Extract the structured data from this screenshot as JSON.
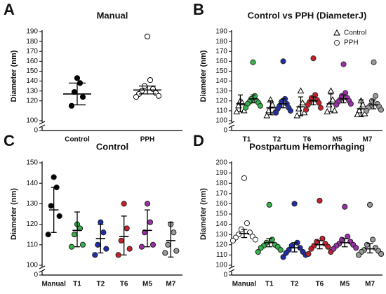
{
  "chart_data": [
    {
      "type": "dotplot",
      "panel": "A",
      "title": "Manual",
      "ylabel": "Diameter (nm)",
      "categories": [
        "Control",
        "PPH"
      ],
      "ylim": [
        100,
        190
      ],
      "yticks": [
        100,
        120,
        130,
        140,
        150,
        160,
        170,
        180,
        190
      ],
      "lower_yticks": [
        0
      ],
      "series": [
        {
          "marker": "circle",
          "stroke": "#000000",
          "fill": [
            "#000000",
            "#ffffff"
          ],
          "points": [
            [
              143,
              138,
              129,
              124,
              115
            ],
            [
              185,
              141,
              135,
              132,
              130,
              128,
              127,
              125,
              124
            ]
          ],
          "mean": [
            127,
            131
          ],
          "err_low": [
            116,
            127
          ],
          "err_high": [
            138,
            135
          ]
        }
      ]
    },
    {
      "type": "dotplot",
      "panel": "B",
      "title": "Control vs PPH (DiameterJ)",
      "ylabel": "Diameter (nm)",
      "categories": [
        "T1",
        "T2",
        "T6",
        "M5",
        "M7"
      ],
      "ylim": [
        100,
        190
      ],
      "yticks": [
        100,
        110,
        120,
        130,
        140,
        150,
        160,
        170,
        180,
        190
      ],
      "lower_yticks": [
        0
      ],
      "legend": "upper right",
      "series": [
        {
          "name": "Control",
          "marker": "triangle",
          "stroke": "#000000",
          "fill": [
            "#ffffff",
            "#ffffff",
            "#ffffff",
            "#ffffff",
            "#ffffff"
          ],
          "points": [
            [
              120,
              118,
              115,
              110,
              109
            ],
            [
              121,
              116,
              110,
              108,
              105
            ],
            [
              130,
              118,
              112,
              108,
              105
            ],
            [
              130,
              121,
              116,
              110,
              109
            ],
            [
              120,
              116,
              110,
              107,
              106
            ]
          ],
          "mean": [
            117,
            113,
            114,
            117,
            112
          ],
          "err_low": [
            109,
            106,
            105,
            109,
            104
          ],
          "err_high": [
            126,
            120,
            124,
            127,
            121
          ]
        },
        {
          "name": "PPH",
          "marker": "circle",
          "stroke": "#333333",
          "fill": [
            "#33b44a",
            "#1f2fa8",
            "#c8202a",
            "#9b2fa8",
            "#9a9a9a"
          ],
          "points": [
            [
              159,
              125,
              122,
              120,
              119,
              118,
              117,
              115,
              113
            ],
            [
              160,
              122,
              119,
              117,
              115,
              113,
              112,
              110,
              108
            ],
            [
              163,
              126,
              123,
              121,
              119,
              118,
              116,
              113,
              111
            ],
            [
              157,
              128,
              125,
              123,
              121,
              120,
              119,
              117,
              116
            ],
            [
              159,
              125,
              120,
              117,
              115,
              114,
              113,
              111,
              110
            ]
          ],
          "mean": [
            122,
            117,
            120,
            122,
            116
          ],
          "err_low": [
            118,
            113,
            116,
            118,
            112
          ],
          "err_high": [
            126,
            122,
            124,
            126,
            121
          ]
        }
      ]
    },
    {
      "type": "dotplot",
      "panel": "C",
      "title": "Control",
      "ylabel": "Diameter (nm)",
      "categories": [
        "Manual",
        "T1",
        "T2",
        "T6",
        "M5",
        "M7"
      ],
      "ylim": [
        100,
        150
      ],
      "yticks": [
        100,
        110,
        120,
        130,
        140,
        150
      ],
      "lower_yticks": [
        0
      ],
      "series": [
        {
          "marker": "circle",
          "stroke": "#222222",
          "fill": [
            "#000000",
            "#33b44a",
            "#1f2fa8",
            "#c8202a",
            "#9b2fa8",
            "#9a9a9a"
          ],
          "points": [
            [
              143,
              138,
              129,
              124,
              115
            ],
            [
              120,
              118,
              115,
              110,
              109
            ],
            [
              121,
              116,
              110,
              108,
              105
            ],
            [
              130,
              118,
              112,
              108,
              105
            ],
            [
              130,
              121,
              116,
              110,
              109
            ],
            [
              120,
              116,
              110,
              107,
              106
            ]
          ],
          "mean": [
            127,
            117,
            113,
            114,
            117,
            112
          ],
          "err_low": [
            116,
            109,
            106,
            105,
            109,
            104
          ],
          "err_high": [
            138,
            126,
            120,
            124,
            127,
            121
          ]
        }
      ]
    },
    {
      "type": "dotplot",
      "panel": "D",
      "title": "Postpartum Hemorrhaging",
      "ylabel": "Diameter (nm)",
      "categories": [
        "Manual",
        "T1",
        "T2",
        "T6",
        "M5",
        "M7"
      ],
      "ylim": [
        100,
        200
      ],
      "yticks": [
        100,
        110,
        120,
        130,
        140,
        150,
        160,
        170,
        180,
        190,
        200
      ],
      "lower_yticks": [
        0
      ],
      "series": [
        {
          "marker": "circle",
          "stroke": "#222222",
          "fill": [
            "#ffffff",
            "#33b44a",
            "#1f2fa8",
            "#c8202a",
            "#9b2fa8",
            "#9a9a9a"
          ],
          "points": [
            [
              185,
              141,
              135,
              132,
              130,
              128,
              127,
              125,
              124
            ],
            [
              159,
              125,
              122,
              120,
              119,
              118,
              117,
              115,
              113
            ],
            [
              160,
              122,
              119,
              117,
              115,
              113,
              112,
              110,
              108
            ],
            [
              163,
              126,
              123,
              121,
              119,
              118,
              116,
              113,
              111
            ],
            [
              157,
              128,
              125,
              123,
              121,
              120,
              119,
              117,
              116
            ],
            [
              159,
              125,
              120,
              117,
              115,
              114,
              113,
              111,
              110
            ]
          ],
          "mean": [
            131,
            122,
            117,
            120,
            122,
            116
          ],
          "err_low": [
            127,
            118,
            113,
            116,
            118,
            112
          ],
          "err_high": [
            135,
            126,
            122,
            124,
            126,
            121
          ]
        }
      ]
    }
  ]
}
